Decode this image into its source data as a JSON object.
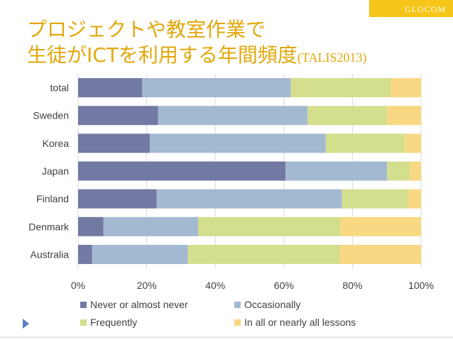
{
  "header": {
    "brand": "GLOCOM",
    "title_line1": "プロジェクトや教室作業で",
    "title_line2_main": "生徒がICTを利用する年間頻度",
    "title_line2_suffix": "(TALIS2013)"
  },
  "colors": {
    "brand_yellow": "#f5c518",
    "title": "#e2a70b",
    "series": [
      "#7279a3",
      "#a3b8d1",
      "#d3df8d",
      "#f8d882"
    ]
  },
  "chart_data": {
    "type": "bar",
    "orientation": "horizontal",
    "stacked": true,
    "percent": true,
    "categories": [
      "total",
      "Sweden",
      "Korea",
      "Japan",
      "Finland",
      "Denmark",
      "Australia"
    ],
    "series": [
      {
        "name": "Never or almost never",
        "values": [
          18.7,
          23.3,
          20.9,
          60.5,
          22.9,
          7.4,
          4.1
        ]
      },
      {
        "name": "Occasionally",
        "values": [
          43.3,
          43.6,
          51.3,
          29.6,
          54.0,
          27.6,
          27.9
        ]
      },
      {
        "name": "Frequently",
        "values": [
          29.2,
          23.1,
          23.1,
          6.6,
          19.4,
          41.5,
          44.3
        ]
      },
      {
        "name": "In all or nearly all lessons",
        "values": [
          8.8,
          10.0,
          4.7,
          3.3,
          3.7,
          23.5,
          23.7
        ]
      }
    ],
    "x_ticks": [
      "0%",
      "20%",
      "40%",
      "60%",
      "80%",
      "100%"
    ],
    "xlim": [
      0,
      100
    ],
    "grid": true,
    "legend_position": "bottom"
  }
}
